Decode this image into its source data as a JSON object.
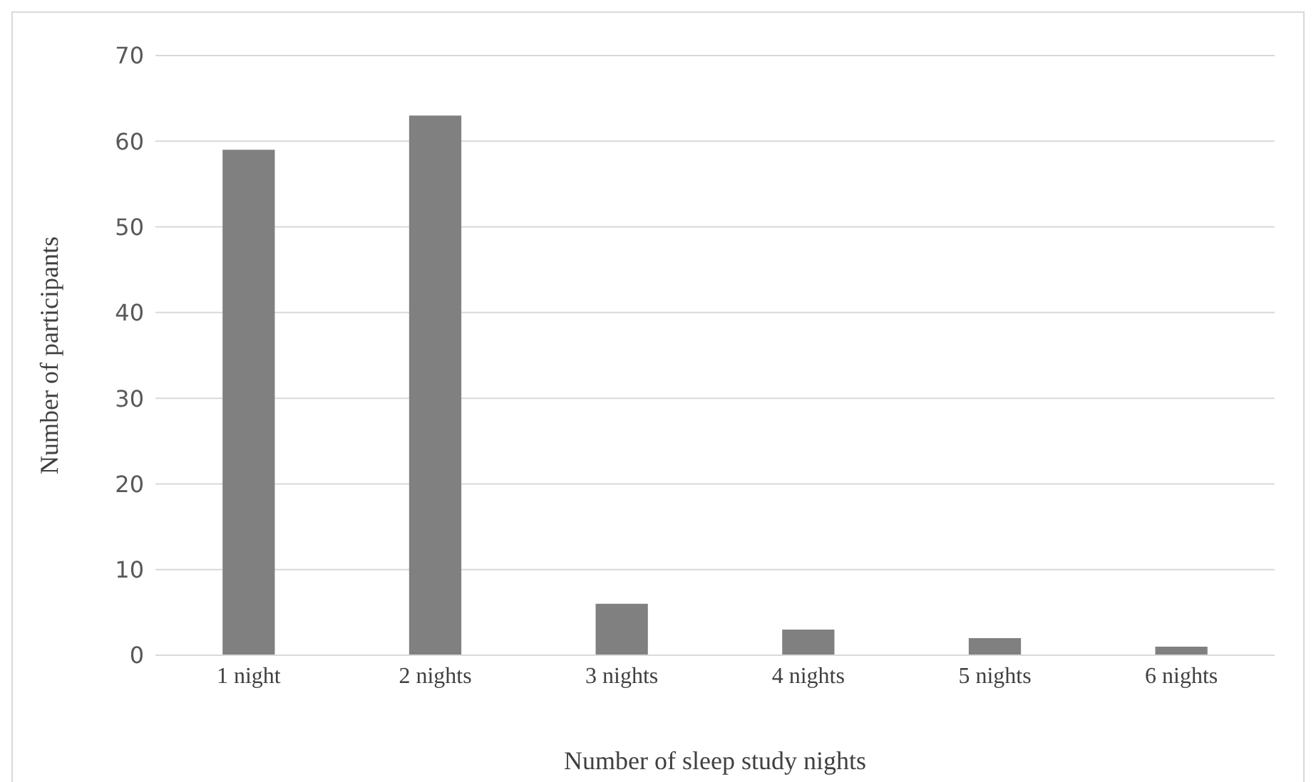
{
  "chart_data": {
    "type": "bar",
    "xlabel": "Number of sleep study nights",
    "ylabel": "Number of participants",
    "categories": [
      "1 night",
      "2 nights",
      "3 nights",
      "4 nights",
      "5 nights",
      "6 nights"
    ],
    "values": [
      59,
      63,
      6,
      3,
      2,
      1
    ],
    "color": "#808080",
    "ylim": [
      0,
      70
    ],
    "yticks": [
      0,
      10,
      20,
      30,
      40,
      50,
      60,
      70
    ],
    "grid": "y"
  }
}
